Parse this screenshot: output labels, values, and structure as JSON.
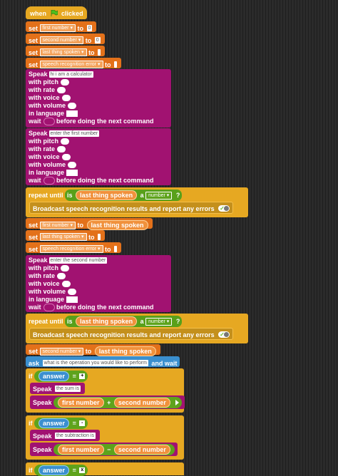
{
  "hat": {
    "when": "when",
    "clicked": "clicked"
  },
  "kw": {
    "set": "set",
    "to": "to",
    "speak": "Speak",
    "with_pitch": "with pitch",
    "with_rate": "with rate",
    "with_voice": "with voice",
    "with_volume": "with volume",
    "in_language": "in language",
    "wait": "wait",
    "before": "before doing the next command",
    "repeat_until": "repeat until",
    "is": "is",
    "a": "a",
    "q": "?",
    "broadcast": "Broadcast speech recognition results and report any errors",
    "ask": "ask",
    "and_wait": "and wait",
    "if": "if",
    "eq": "=",
    "plus": "+",
    "minus": "−"
  },
  "vars": {
    "first_number": "first number",
    "second_number": "second number",
    "last_thing_spoken": "last thing spoken",
    "speech_error": "speech recognition error",
    "answer": "answer",
    "number_type": "number"
  },
  "values": {
    "zero": "0"
  },
  "speech": {
    "s1": "hi i am a calculator",
    "s2": "enter the first number",
    "s3": "enter the second number",
    "s4": "the sum is",
    "s5": "the subtraction is"
  },
  "ask_text": "what is the operation you would like to perform",
  "ops": {
    "plus": "+",
    "minus": "-",
    "times": "x"
  },
  "colors": {
    "event": "#e6a822",
    "variable": "#e3711a",
    "speak": "#a11271",
    "control": "#e6a822",
    "sensing": "#3a8fcf",
    "operator": "#5ea31c"
  }
}
